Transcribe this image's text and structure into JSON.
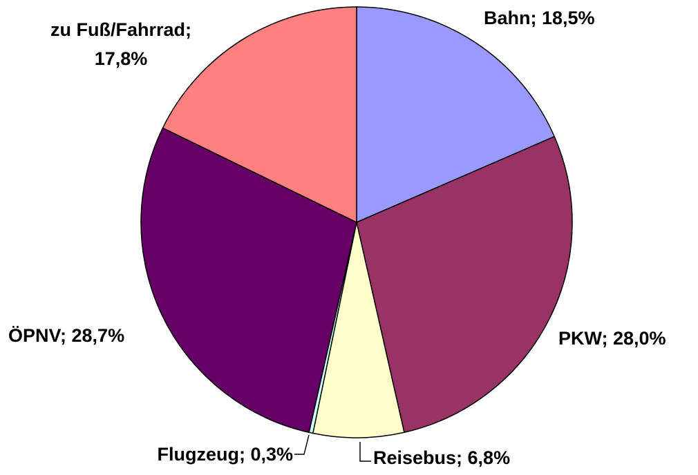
{
  "chart_data": {
    "type": "pie",
    "categories": [
      "Bahn",
      "PKW",
      "Reisebus",
      "Flugzeug",
      "ÖPNV",
      "zu Fuß/Fahrrad"
    ],
    "values": [
      18.5,
      28.0,
      6.8,
      0.3,
      28.7,
      17.8
    ],
    "value_labels": [
      "Bahn; 18,5%",
      "PKW; 28,0%",
      "Reisebus; 6,8%",
      "Flugzeug; 0,3%",
      "ÖPNV; 28,7%",
      [
        "zu Fuß/Fahrrad;",
        "17,8%"
      ]
    ],
    "colors": [
      "#9999ff",
      "#993366",
      "#ffffcc",
      "#ccffff",
      "#660066",
      "#ff8080"
    ]
  }
}
